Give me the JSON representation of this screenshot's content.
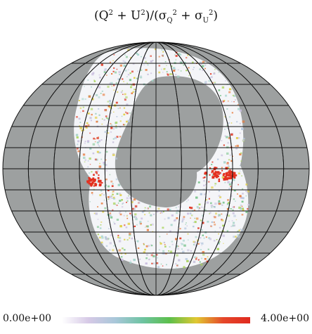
{
  "title": {
    "prefix": "(Q",
    "q_exp": "2",
    "mid": " + U",
    "u_exp": "2",
    "rest": ")/(σ",
    "sub_q": "Q",
    "sq_exp": "2",
    "plus": " + σ",
    "sub_u": "U",
    "su_exp": "2",
    "end": ")"
  },
  "colorbar": {
    "min_label": "0.00e+00",
    "max_label": "4.00e+00",
    "colors": [
      "#ffffff",
      "#d6c9e6",
      "#a8c7d9",
      "#6ec3a2",
      "#5cbf4b",
      "#e1c832",
      "#e5472a",
      "#e02a1f"
    ]
  },
  "map": {
    "projection": "mollweide",
    "mask_color": "#9da0a0",
    "grid_color": "#111111",
    "observed_fill": "#f4f5f8",
    "hot_spot_color": "#e3301f"
  }
}
